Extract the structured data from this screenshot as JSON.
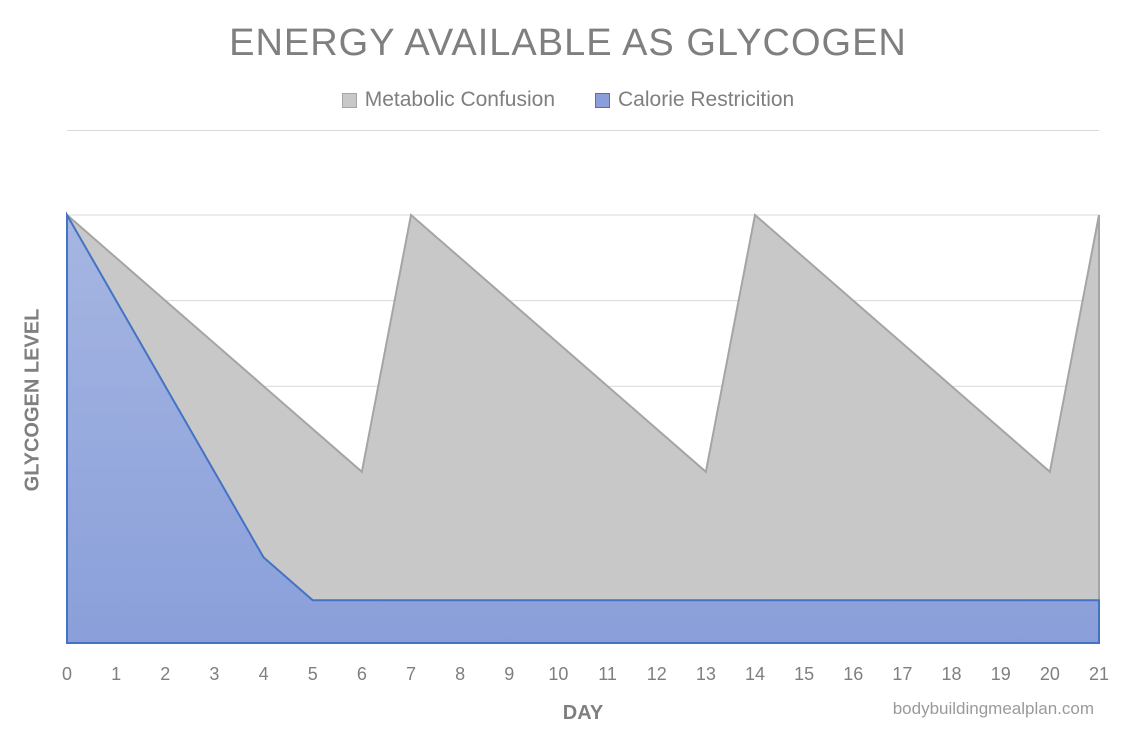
{
  "chart_data": {
    "type": "area",
    "title": "ENERGY AVAILABLE AS GLYCOGEN",
    "xlabel": "DAY",
    "ylabel": "GLYCOGEN LEVEL",
    "x": [
      0,
      1,
      2,
      3,
      4,
      5,
      6,
      7,
      8,
      9,
      10,
      11,
      12,
      13,
      14,
      15,
      16,
      17,
      18,
      19,
      20,
      21
    ],
    "xticks": [
      "0",
      "1",
      "2",
      "3",
      "4",
      "5",
      "6",
      "7",
      "8",
      "9",
      "10",
      "11",
      "12",
      "13",
      "14",
      "15",
      "16",
      "17",
      "18",
      "19",
      "20",
      "21"
    ],
    "ylim": [
      0,
      100
    ],
    "grid": true,
    "legend_position": "top",
    "series": [
      {
        "name": "Metabolic Confusion",
        "color": "#c8c8c8",
        "stroke": "#a5a5a5",
        "values": [
          100,
          90,
          80,
          70,
          60,
          50,
          40,
          100,
          90,
          80,
          70,
          60,
          50,
          40,
          100,
          90,
          80,
          70,
          60,
          50,
          40,
          100
        ]
      },
      {
        "name": "Calorie Restricition",
        "color": "#8a9fda",
        "stroke": "#4472c4",
        "values": [
          100,
          80,
          60,
          40,
          20,
          10,
          10,
          10,
          10,
          10,
          10,
          10,
          10,
          10,
          10,
          10,
          10,
          10,
          10,
          10,
          10,
          10
        ]
      }
    ]
  },
  "watermark": "bodybuildingmealplan.com"
}
